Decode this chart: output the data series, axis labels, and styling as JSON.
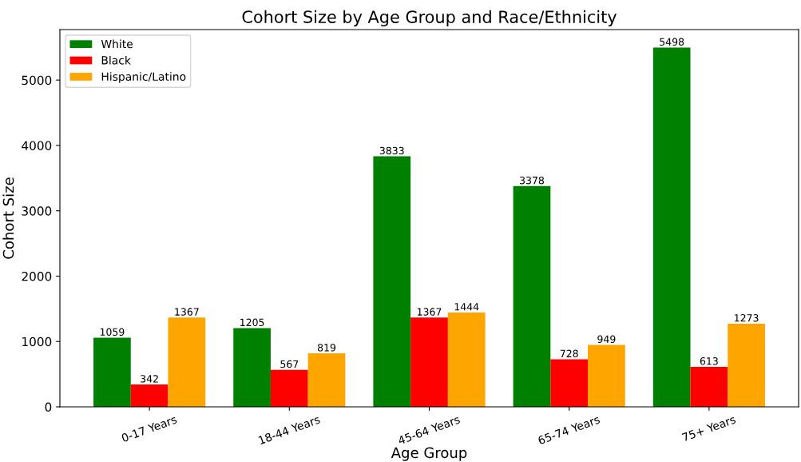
{
  "chart_data": {
    "type": "bar",
    "title": "Cohort Size by Age Group and Race/Ethnicity",
    "xlabel": "Age Group",
    "ylabel": "Cohort Size",
    "categories": [
      "0-17 Years",
      "18-44 Years",
      "45-64 Years",
      "65-74 Years",
      "75+ Years"
    ],
    "series": [
      {
        "name": "White",
        "color": "#008000",
        "values": [
          1059,
          1205,
          3833,
          3378,
          5498
        ]
      },
      {
        "name": "Black",
        "color": "#ff0000",
        "values": [
          342,
          567,
          1367,
          728,
          613
        ]
      },
      {
        "name": "Hispanic/Latino",
        "color": "#ffa500",
        "values": [
          1367,
          819,
          1444,
          949,
          1273
        ]
      }
    ],
    "ylim": [
      0,
      5773
    ],
    "yticks": [
      0,
      1000,
      2000,
      3000,
      4000,
      5000
    ],
    "data_labels": true,
    "legend": "top left",
    "grid": false
  }
}
